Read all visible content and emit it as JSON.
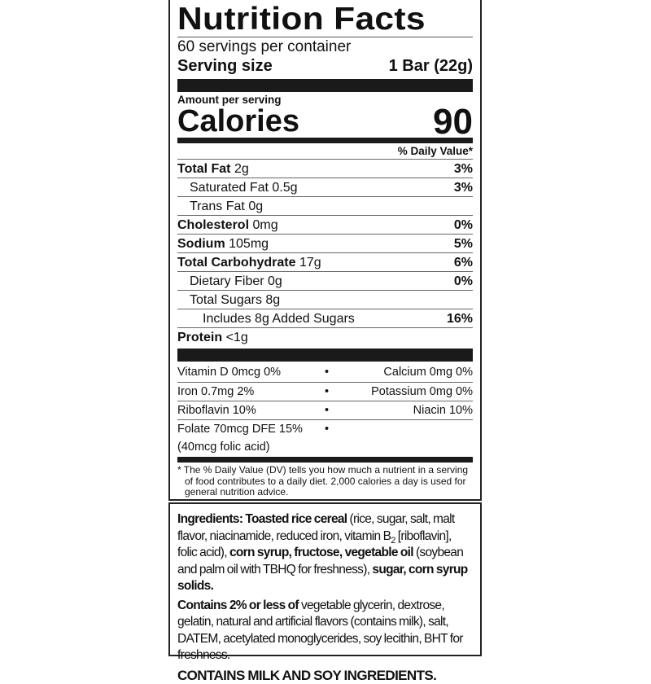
{
  "title": "Nutrition Facts",
  "servings_per_container": "60 servings per container",
  "serving_size": {
    "label": "Serving size",
    "value": "1 Bar (22g)"
  },
  "amount_per_serving": "Amount per serving",
  "calories": {
    "label": "Calories",
    "value": "90"
  },
  "daily_value_header": "% Daily Value*",
  "nutrients": [
    {
      "name": "Total Fat",
      "amount": "2g",
      "dv": "3%",
      "bold": true,
      "indent": 0
    },
    {
      "name": "Saturated Fat",
      "amount": "0.5g",
      "dv": "3%",
      "bold": false,
      "indent": 1
    },
    {
      "name": "Trans Fat",
      "amount": "0g",
      "dv": "",
      "bold": false,
      "indent": 1
    },
    {
      "name": "Cholesterol",
      "amount": "0mg",
      "dv": "0%",
      "bold": true,
      "indent": 0
    },
    {
      "name": "Sodium",
      "amount": "105mg",
      "dv": "5%",
      "bold": true,
      "indent": 0
    },
    {
      "name": "Total Carbohydrate",
      "amount": "17g",
      "dv": "6%",
      "bold": true,
      "indent": 0
    },
    {
      "name": "Dietary Fiber",
      "amount": "0g",
      "dv": "0%",
      "bold": false,
      "indent": 1
    },
    {
      "name": "Total Sugars",
      "amount": "8g",
      "dv": "",
      "bold": false,
      "indent": 1
    },
    {
      "name": "Includes 8g Added Sugars",
      "amount": "",
      "dv": "16%",
      "bold": false,
      "indent": 2
    },
    {
      "name": "Protein",
      "amount": "<1g",
      "dv": "",
      "bold": true,
      "indent": 0
    }
  ],
  "vitamins": [
    {
      "left": "Vitamin D 0mcg 0%",
      "right": "Calcium 0mg 0%"
    },
    {
      "left": "Iron 0.7mg 2%",
      "right": "Potassium 0mg 0%"
    },
    {
      "left": "Riboflavin 10%",
      "right": "Niacin 10%"
    },
    {
      "left": "Folate 70mcg DFE 15%",
      "left2": "(40mcg folic acid)",
      "right": ""
    }
  ],
  "bullet": "•",
  "footnote": "* The % Daily Value (DV) tells you how much a nutrient in a serving of food contributes to a daily diet. 2,000 calories a day is used for general nutrition advice.",
  "ingredients": {
    "label": "Ingredients:",
    "p1_b1": "Toasted rice cereal",
    "p1_t1": " (rice, sugar, salt, malt flavor, niacinamide, reduced iron, vitamin B",
    "p1_sub": "2",
    "p1_t2": " [riboflavin], folic acid), ",
    "p1_b2": "corn syrup, fructose, vegetable oil",
    "p1_t3": " (soybean and palm oil with TBHQ for freshness), ",
    "p1_b3": "sugar, corn syrup solids.",
    "p2_b": "Contains 2% or less of",
    "p2_t": " vegetable glycerin, dextrose, gelatin, natural and artificial flavors (contains milk), salt, DATEM, acetylated monoglycerides, soy lecithin, BHT for freshness.",
    "allergen": "CONTAINS MILK AND SOY INGREDIENTS."
  }
}
